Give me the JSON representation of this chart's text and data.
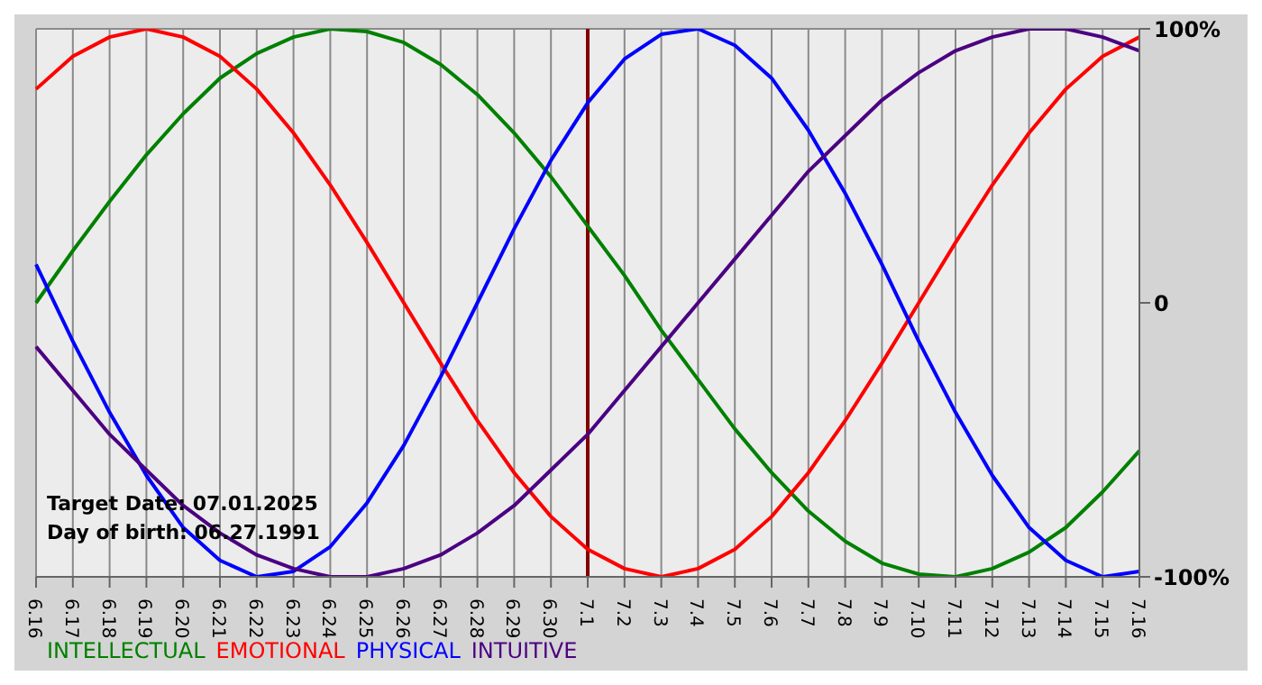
{
  "chart_data": {
    "type": "line",
    "categories": [
      "6.16",
      "6.17",
      "6.18",
      "6.19",
      "6.20",
      "6.21",
      "6.22",
      "6.23",
      "6.24",
      "6.25",
      "6.26",
      "6.27",
      "6.28",
      "6.29",
      "6.30",
      "7.1",
      "7.2",
      "7.3",
      "7.4",
      "7.5",
      "7.6",
      "7.7",
      "7.8",
      "7.9",
      "7.10",
      "7.11",
      "7.12",
      "7.13",
      "7.14",
      "7.15",
      "7.16"
    ],
    "series": [
      {
        "name": "INTELLECTUAL",
        "color": "#008000",
        "values": [
          0,
          19,
          37,
          54,
          69,
          82,
          91,
          97,
          100,
          99,
          95,
          87,
          76,
          62,
          46,
          28,
          10,
          -10,
          -28,
          -46,
          -62,
          -76,
          -87,
          -95,
          -99,
          -100,
          -97,
          -91,
          -82,
          -69,
          -54
        ]
      },
      {
        "name": "EMOTIONAL",
        "color": "#ff0000",
        "values": [
          78,
          90,
          97,
          100,
          97,
          90,
          78,
          62,
          43,
          22,
          0,
          -22,
          -43,
          -62,
          -78,
          -90,
          -97,
          -100,
          -97,
          -90,
          -78,
          -62,
          -43,
          -22,
          0,
          22,
          43,
          62,
          78,
          90,
          97
        ]
      },
      {
        "name": "PHYSICAL",
        "color": "#0000ff",
        "values": [
          14,
          -14,
          -40,
          -63,
          -82,
          -94,
          -100,
          -98,
          -89,
          -73,
          -52,
          -27,
          0,
          27,
          52,
          73,
          89,
          98,
          100,
          94,
          82,
          63,
          40,
          14,
          -14,
          -40,
          -63,
          -82,
          -94,
          -100,
          -98
        ]
      },
      {
        "name": "INTUITIVE",
        "color": "#4b0082",
        "values": [
          -16,
          -32,
          -48,
          -61,
          -74,
          -84,
          -92,
          -97,
          -100,
          -100,
          -97,
          -92,
          -84,
          -74,
          -61,
          -48,
          -32,
          -16,
          0,
          16,
          32,
          48,
          61,
          74,
          84,
          92,
          97,
          100,
          100,
          97,
          92
        ]
      }
    ],
    "ylim": [
      -100,
      100
    ],
    "yticks": [
      {
        "value": -100,
        "label": "-100%"
      },
      0,
      {
        "value": 100,
        "label": "100%"
      }
    ],
    "ref_lines": [
      {
        "axis": "x",
        "value": "7.1",
        "color": "#800000"
      }
    ],
    "annotations": [
      "Target Date: 07.01.2025",
      "Day of birth: 06.27.1991"
    ],
    "grid": true,
    "legend": "bottom",
    "marker": "none",
    "line_style": "solid"
  }
}
